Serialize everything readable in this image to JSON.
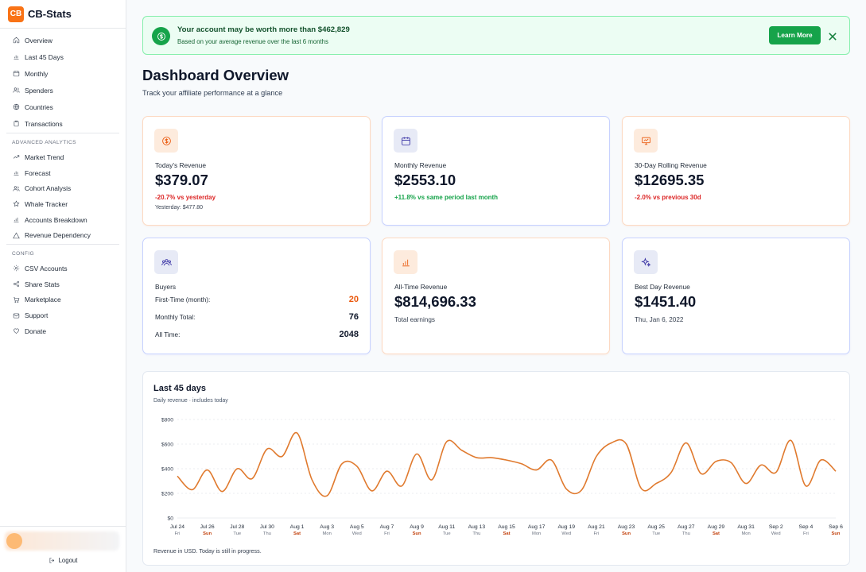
{
  "app": {
    "logo": "CB",
    "name": "CB-Stats"
  },
  "sidebar": {
    "main": [
      {
        "label": "Overview",
        "icon": "home-icon"
      },
      {
        "label": "Last 45 Days",
        "icon": "bar-chart-icon"
      },
      {
        "label": "Monthly",
        "icon": "calendar-icon"
      },
      {
        "label": "Spenders",
        "icon": "users-icon"
      },
      {
        "label": "Countries",
        "icon": "globe-icon"
      },
      {
        "label": "Transactions",
        "icon": "clipboard-icon"
      }
    ],
    "advanced_label": "ADVANCED ANALYTICS",
    "advanced": [
      {
        "label": "Market Trend",
        "icon": "trending-up-icon"
      },
      {
        "label": "Forecast",
        "icon": "bar-chart-icon"
      },
      {
        "label": "Cohort Analysis",
        "icon": "users-icon"
      },
      {
        "label": "Whale Tracker",
        "icon": "star-icon"
      },
      {
        "label": "Accounts Breakdown",
        "icon": "chart-icon"
      },
      {
        "label": "Revenue Dependency",
        "icon": "warning-icon"
      }
    ],
    "config_label": "CONFIG",
    "config": [
      {
        "label": "CSV Accounts",
        "icon": "gear-icon"
      },
      {
        "label": "Share Stats",
        "icon": "share-icon"
      },
      {
        "label": "Marketplace",
        "icon": "cart-icon"
      },
      {
        "label": "Support",
        "icon": "mail-icon"
      },
      {
        "label": "Donate",
        "icon": "heart-icon"
      }
    ],
    "logout_label": "Logout"
  },
  "banner": {
    "title": "Your account may be worth more than $462,829",
    "subtitle": "Based on your average revenue over the last 6 months",
    "button": "Learn More"
  },
  "header": {
    "title": "Dashboard Overview",
    "subtitle": "Track your affiliate performance at a glance"
  },
  "cards": {
    "today": {
      "label": "Today's Revenue",
      "value": "$379.07",
      "delta": "-20.7% vs yesterday",
      "note": "Yesterday: $477.80"
    },
    "monthly": {
      "label": "Monthly Revenue",
      "value": "$2553.10",
      "delta": "+11.8% vs same period last month"
    },
    "rolling": {
      "label": "30-Day Rolling Revenue",
      "value": "$12695.35",
      "delta": "-2.0% vs previous 30d"
    },
    "buyers": {
      "label": "Buyers",
      "first_label": "First-Time (month):",
      "first_value": "20",
      "monthly_label": "Monthly Total:",
      "monthly_value": "76",
      "all_label": "All Time:",
      "all_value": "2048"
    },
    "alltime": {
      "label": "All-Time Revenue",
      "value": "$814,696.33",
      "note": "Total earnings"
    },
    "bestday": {
      "label": "Best Day Revenue",
      "value": "$1451.40",
      "note": "Thu, Jan 6, 2022"
    }
  },
  "colors": {
    "accent": "#f97316",
    "line": "#e07a2e",
    "weekend": "#c2410c",
    "success": "#16a34a",
    "danger": "#dc2626"
  },
  "chart": {
    "title": "Last 45 days",
    "subtitle": "Daily revenue · includes today",
    "footnote": "Revenue in USD. Today is still in progress."
  },
  "chart_data": {
    "type": "line",
    "x": [
      "Jul 24",
      "Jul 25",
      "Jul 26",
      "Jul 27",
      "Jul 28",
      "Jul 29",
      "Jul 30",
      "Jul 31",
      "Aug 1",
      "Aug 2",
      "Aug 3",
      "Aug 4",
      "Aug 5",
      "Aug 6",
      "Aug 7",
      "Aug 8",
      "Aug 9",
      "Aug 10",
      "Aug 11",
      "Aug 12",
      "Aug 13",
      "Aug 14",
      "Aug 15",
      "Aug 16",
      "Aug 17",
      "Aug 18",
      "Aug 19",
      "Aug 20",
      "Aug 21",
      "Aug 22",
      "Aug 23",
      "Aug 24",
      "Aug 25",
      "Aug 26",
      "Aug 27",
      "Aug 28",
      "Aug 29",
      "Aug 30",
      "Aug 31",
      "Sep 1",
      "Sep 2",
      "Sep 3",
      "Sep 4",
      "Sep 5",
      "Sep 6"
    ],
    "values": [
      340,
      230,
      390,
      215,
      400,
      320,
      560,
      500,
      690,
      310,
      180,
      440,
      420,
      220,
      380,
      260,
      520,
      310,
      620,
      550,
      490,
      490,
      470,
      440,
      390,
      470,
      235,
      225,
      500,
      610,
      600,
      240,
      280,
      370,
      610,
      360,
      460,
      450,
      280,
      430,
      370,
      630,
      260,
      470,
      380
    ],
    "tick_labels": [
      {
        "date": "Jul 24",
        "day": "Fri",
        "weekend": false
      },
      {
        "date": "Jul 26",
        "day": "Sun",
        "weekend": true
      },
      {
        "date": "Jul 28",
        "day": "Tue",
        "weekend": false
      },
      {
        "date": "Jul 30",
        "day": "Thu",
        "weekend": false
      },
      {
        "date": "Aug 1",
        "day": "Sat",
        "weekend": true
      },
      {
        "date": "Aug 3",
        "day": "Mon",
        "weekend": false
      },
      {
        "date": "Aug 5",
        "day": "Wed",
        "weekend": false
      },
      {
        "date": "Aug 7",
        "day": "Fri",
        "weekend": false
      },
      {
        "date": "Aug 9",
        "day": "Sun",
        "weekend": true
      },
      {
        "date": "Aug 11",
        "day": "Tue",
        "weekend": false
      },
      {
        "date": "Aug 13",
        "day": "Thu",
        "weekend": false
      },
      {
        "date": "Aug 15",
        "day": "Sat",
        "weekend": true
      },
      {
        "date": "Aug 17",
        "day": "Mon",
        "weekend": false
      },
      {
        "date": "Aug 19",
        "day": "Wed",
        "weekend": false
      },
      {
        "date": "Aug 21",
        "day": "Fri",
        "weekend": false
      },
      {
        "date": "Aug 23",
        "day": "Sun",
        "weekend": true
      },
      {
        "date": "Aug 25",
        "day": "Tue",
        "weekend": false
      },
      {
        "date": "Aug 27",
        "day": "Thu",
        "weekend": false
      },
      {
        "date": "Aug 29",
        "day": "Sat",
        "weekend": true
      },
      {
        "date": "Aug 31",
        "day": "Mon",
        "weekend": false
      },
      {
        "date": "Sep 2",
        "day": "Wed",
        "weekend": false
      },
      {
        "date": "Sep 4",
        "day": "Fri",
        "weekend": false
      },
      {
        "date": "Sep 6",
        "day": "Sun",
        "weekend": true
      }
    ],
    "y_ticks": [
      "$0",
      "$200",
      "$400",
      "$600",
      "$800"
    ],
    "ylim": [
      0,
      800
    ],
    "grid": true,
    "title": "Last 45 days",
    "xlabel": "",
    "ylabel": ""
  }
}
